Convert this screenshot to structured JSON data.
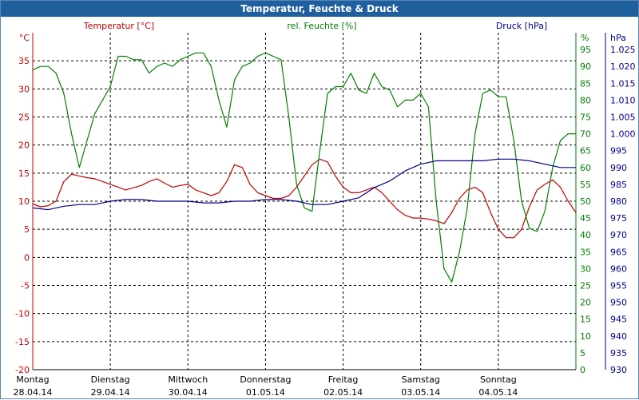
{
  "window": {
    "title": "Temperatur, Feuchte & Druck"
  },
  "colors": {
    "temperature": "#c00000",
    "humidity": "#008000",
    "pressure": "#00008b",
    "grid": "#000000",
    "titlebar": "#1f5f9e"
  },
  "chart_data": {
    "type": "line",
    "title": "Temperatur, Feuchte & Druck",
    "grid": true,
    "x_range": [
      0,
      7
    ],
    "x_ticks": [
      {
        "day": "Montag",
        "date": "28.04.14"
      },
      {
        "day": "Dienstag",
        "date": "29.04.14"
      },
      {
        "day": "Mittwoch",
        "date": "30.04.14"
      },
      {
        "day": "Donnerstag",
        "date": "01.05.14"
      },
      {
        "day": "Freitag",
        "date": "02.05.14"
      },
      {
        "day": "Samstag",
        "date": "03.05.14"
      },
      {
        "day": "Sonntag",
        "date": "04.05.14"
      }
    ],
    "axes": {
      "temperature": {
        "label": "Temperatur [°C]",
        "unit": "°C",
        "range": [
          -20,
          40
        ],
        "ticks": [
          "35",
          "30",
          "25",
          "20",
          "15",
          "10",
          "5",
          "0",
          "-5",
          "-10",
          "-15",
          "-20"
        ]
      },
      "humidity": {
        "label": "rel. Feuchte [%]",
        "unit": "%",
        "range": [
          0,
          100
        ],
        "ticks": [
          "95",
          "90",
          "85",
          "80",
          "75",
          "70",
          "65",
          "60",
          "55",
          "50",
          "45",
          "40",
          "35",
          "30",
          "25",
          "20",
          "15",
          "10",
          "5",
          "0"
        ]
      },
      "pressure": {
        "label": "Druck [hPa]",
        "unit": "hPa",
        "range": [
          930,
          1030
        ],
        "ticks": [
          "1.025",
          "1.020",
          "1.015",
          "1.010",
          "1.005",
          "1.000",
          "995",
          "990",
          "985",
          "980",
          "975",
          "970",
          "965",
          "960",
          "955",
          "950",
          "945",
          "940",
          "935",
          "930"
        ]
      }
    },
    "series": [
      {
        "name": "Temperatur [°C]",
        "axis": "temperature",
        "x": [
          0.0,
          0.1,
          0.2,
          0.3,
          0.4,
          0.5,
          0.6,
          0.7,
          0.8,
          0.9,
          1.0,
          1.1,
          1.2,
          1.3,
          1.4,
          1.5,
          1.6,
          1.7,
          1.8,
          1.9,
          2.0,
          2.1,
          2.2,
          2.3,
          2.4,
          2.5,
          2.6,
          2.7,
          2.8,
          2.9,
          3.0,
          3.1,
          3.2,
          3.3,
          3.4,
          3.5,
          3.6,
          3.7,
          3.8,
          3.9,
          4.0,
          4.1,
          4.2,
          4.3,
          4.4,
          4.5,
          4.6,
          4.7,
          4.8,
          4.9,
          5.0,
          5.1,
          5.2,
          5.3,
          5.4,
          5.5,
          5.6,
          5.7,
          5.8,
          5.9,
          6.0,
          6.1,
          6.2,
          6.3,
          6.4,
          6.5,
          6.6,
          6.7,
          6.8,
          6.9,
          7.0
        ],
        "values": [
          9.5,
          9.0,
          9.2,
          10.0,
          13.5,
          14.8,
          14.5,
          14.2,
          14.0,
          13.5,
          13.0,
          12.5,
          12.0,
          12.4,
          12.8,
          13.5,
          14.0,
          13.2,
          12.5,
          12.8,
          13.0,
          12.0,
          11.5,
          11.0,
          11.5,
          13.5,
          16.5,
          16.0,
          13.0,
          11.5,
          11.0,
          10.5,
          10.5,
          11.0,
          12.5,
          14.5,
          16.5,
          17.5,
          17.0,
          14.5,
          12.5,
          11.5,
          11.5,
          12.0,
          12.5,
          11.5,
          10.0,
          8.5,
          7.5,
          7.0,
          7.0,
          6.8,
          6.5,
          6.0,
          8.0,
          10.5,
          12.0,
          12.5,
          11.5,
          8.0,
          5.0,
          3.5,
          3.5,
          5.0,
          9.0,
          12.0,
          13.0,
          13.8,
          12.5,
          10.0,
          8.0
        ]
      },
      {
        "name": "rel. Feuchte [%]",
        "axis": "humidity",
        "x": [
          0.0,
          0.1,
          0.2,
          0.3,
          0.4,
          0.5,
          0.6,
          0.7,
          0.8,
          0.9,
          1.0,
          1.1,
          1.2,
          1.3,
          1.4,
          1.5,
          1.6,
          1.7,
          1.8,
          1.9,
          2.0,
          2.1,
          2.2,
          2.3,
          2.4,
          2.5,
          2.6,
          2.7,
          2.8,
          2.9,
          3.0,
          3.1,
          3.2,
          3.3,
          3.4,
          3.5,
          3.6,
          3.7,
          3.8,
          3.9,
          4.0,
          4.1,
          4.2,
          4.3,
          4.4,
          4.5,
          4.6,
          4.7,
          4.8,
          4.9,
          5.0,
          5.1,
          5.2,
          5.3,
          5.4,
          5.5,
          5.6,
          5.7,
          5.8,
          5.9,
          6.0,
          6.1,
          6.2,
          6.3,
          6.4,
          6.5,
          6.6,
          6.7,
          6.8,
          6.9,
          7.0
        ],
        "values": [
          89,
          90,
          90,
          88,
          82,
          70,
          60,
          68,
          76,
          80,
          84,
          93,
          93,
          92,
          92,
          88,
          90,
          91,
          90,
          92,
          93,
          94,
          94,
          90,
          80,
          72,
          86,
          90,
          91,
          93,
          94,
          93,
          92,
          75,
          55,
          48,
          47,
          65,
          82,
          84,
          84,
          88,
          83,
          82,
          88,
          84,
          83,
          78,
          80,
          80,
          82,
          78,
          50,
          30,
          26,
          35,
          48,
          70,
          82,
          83,
          81,
          81,
          68,
          50,
          42,
          41,
          47,
          60,
          68,
          70,
          70
        ]
      },
      {
        "name": "Druck [hPa]",
        "axis": "pressure",
        "x": [
          0.0,
          0.2,
          0.4,
          0.6,
          0.8,
          1.0,
          1.2,
          1.4,
          1.6,
          1.8,
          2.0,
          2.2,
          2.4,
          2.6,
          2.8,
          3.0,
          3.2,
          3.4,
          3.6,
          3.8,
          4.0,
          4.2,
          4.4,
          4.6,
          4.8,
          5.0,
          5.2,
          5.4,
          5.6,
          5.8,
          6.0,
          6.2,
          6.4,
          6.6,
          6.8,
          7.0
        ],
        "values": [
          978,
          977.5,
          978.5,
          979,
          979,
          980,
          980.5,
          980.5,
          980,
          980,
          980,
          979.5,
          979.5,
          980,
          980,
          980.5,
          980.5,
          980,
          979,
          979,
          980,
          981,
          984,
          986,
          989,
          991,
          992,
          992,
          992,
          992,
          992.5,
          992.5,
          992,
          991,
          990,
          990
        ]
      }
    ]
  }
}
